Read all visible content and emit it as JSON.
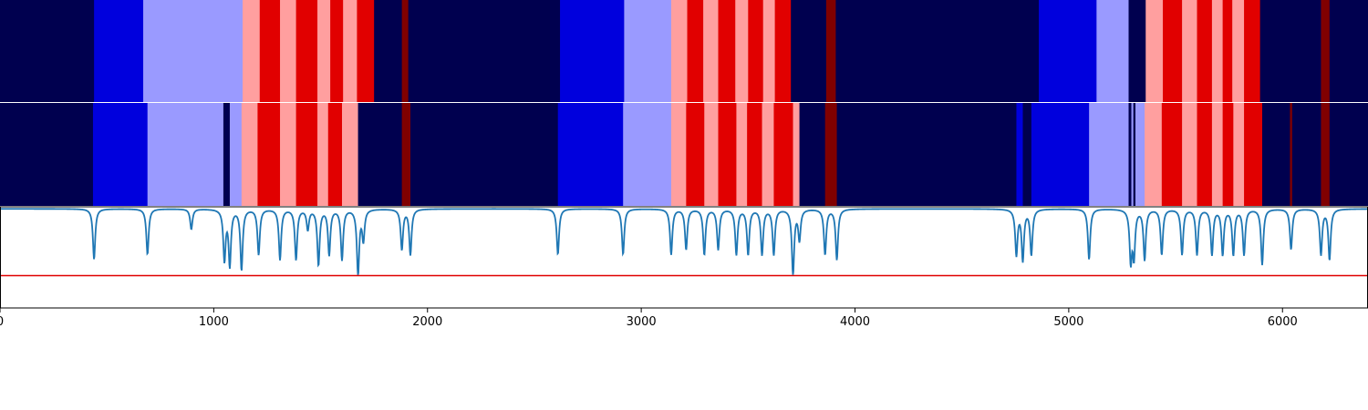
{
  "chart_data": [
    {
      "type": "heatmap",
      "name": "segmentation-track-1",
      "xlim": [
        0,
        6400
      ],
      "palette": {
        "navy": "#00004f",
        "blue": "#0000dd",
        "lavender": "#9a9aff",
        "pink": "#ff9f9f",
        "red": "#e10000",
        "maroon": "#800000"
      },
      "segments": [
        {
          "start": 0,
          "end": 440,
          "color": "navy"
        },
        {
          "start": 440,
          "end": 670,
          "color": "blue"
        },
        {
          "start": 670,
          "end": 1135,
          "color": "lavender"
        },
        {
          "start": 1135,
          "end": 1215,
          "color": "pink"
        },
        {
          "start": 1215,
          "end": 1310,
          "color": "red"
        },
        {
          "start": 1310,
          "end": 1385,
          "color": "pink"
        },
        {
          "start": 1385,
          "end": 1485,
          "color": "red"
        },
        {
          "start": 1485,
          "end": 1545,
          "color": "pink"
        },
        {
          "start": 1545,
          "end": 1605,
          "color": "red"
        },
        {
          "start": 1605,
          "end": 1670,
          "color": "pink"
        },
        {
          "start": 1670,
          "end": 1750,
          "color": "red"
        },
        {
          "start": 1750,
          "end": 1880,
          "color": "navy"
        },
        {
          "start": 1880,
          "end": 1910,
          "color": "maroon"
        },
        {
          "start": 1910,
          "end": 2620,
          "color": "navy"
        },
        {
          "start": 2620,
          "end": 2920,
          "color": "blue"
        },
        {
          "start": 2920,
          "end": 3140,
          "color": "lavender"
        },
        {
          "start": 3140,
          "end": 3215,
          "color": "pink"
        },
        {
          "start": 3215,
          "end": 3290,
          "color": "red"
        },
        {
          "start": 3290,
          "end": 3360,
          "color": "pink"
        },
        {
          "start": 3360,
          "end": 3440,
          "color": "red"
        },
        {
          "start": 3440,
          "end": 3500,
          "color": "pink"
        },
        {
          "start": 3500,
          "end": 3570,
          "color": "red"
        },
        {
          "start": 3570,
          "end": 3625,
          "color": "pink"
        },
        {
          "start": 3625,
          "end": 3700,
          "color": "red"
        },
        {
          "start": 3700,
          "end": 3865,
          "color": "navy"
        },
        {
          "start": 3865,
          "end": 3910,
          "color": "maroon"
        },
        {
          "start": 3910,
          "end": 4860,
          "color": "navy"
        },
        {
          "start": 4860,
          "end": 5130,
          "color": "blue"
        },
        {
          "start": 5130,
          "end": 5280,
          "color": "lavender"
        },
        {
          "start": 5280,
          "end": 5360,
          "color": "navy"
        },
        {
          "start": 5360,
          "end": 5440,
          "color": "pink"
        },
        {
          "start": 5440,
          "end": 5530,
          "color": "red"
        },
        {
          "start": 5530,
          "end": 5600,
          "color": "pink"
        },
        {
          "start": 5600,
          "end": 5670,
          "color": "red"
        },
        {
          "start": 5670,
          "end": 5720,
          "color": "pink"
        },
        {
          "start": 5720,
          "end": 5765,
          "color": "red"
        },
        {
          "start": 5765,
          "end": 5820,
          "color": "pink"
        },
        {
          "start": 5820,
          "end": 5895,
          "color": "red"
        },
        {
          "start": 5895,
          "end": 6180,
          "color": "navy"
        },
        {
          "start": 6180,
          "end": 6220,
          "color": "maroon"
        },
        {
          "start": 6220,
          "end": 6400,
          "color": "navy"
        }
      ]
    },
    {
      "type": "heatmap",
      "name": "segmentation-track-2",
      "xlim": [
        0,
        6400
      ],
      "segments": [
        {
          "start": 0,
          "end": 435,
          "color": "navy"
        },
        {
          "start": 435,
          "end": 690,
          "color": "blue"
        },
        {
          "start": 690,
          "end": 1045,
          "color": "lavender"
        },
        {
          "start": 1045,
          "end": 1075,
          "color": "navy"
        },
        {
          "start": 1075,
          "end": 1130,
          "color": "lavender"
        },
        {
          "start": 1130,
          "end": 1205,
          "color": "pink"
        },
        {
          "start": 1205,
          "end": 1310,
          "color": "red"
        },
        {
          "start": 1310,
          "end": 1385,
          "color": "pink"
        },
        {
          "start": 1385,
          "end": 1485,
          "color": "red"
        },
        {
          "start": 1485,
          "end": 1535,
          "color": "pink"
        },
        {
          "start": 1535,
          "end": 1600,
          "color": "red"
        },
        {
          "start": 1600,
          "end": 1675,
          "color": "pink"
        },
        {
          "start": 1675,
          "end": 1880,
          "color": "navy"
        },
        {
          "start": 1880,
          "end": 1920,
          "color": "maroon"
        },
        {
          "start": 1920,
          "end": 2610,
          "color": "navy"
        },
        {
          "start": 2610,
          "end": 2915,
          "color": "blue"
        },
        {
          "start": 2915,
          "end": 3140,
          "color": "lavender"
        },
        {
          "start": 3140,
          "end": 3210,
          "color": "pink"
        },
        {
          "start": 3210,
          "end": 3295,
          "color": "red"
        },
        {
          "start": 3295,
          "end": 3360,
          "color": "pink"
        },
        {
          "start": 3360,
          "end": 3445,
          "color": "red"
        },
        {
          "start": 3445,
          "end": 3495,
          "color": "pink"
        },
        {
          "start": 3495,
          "end": 3565,
          "color": "red"
        },
        {
          "start": 3565,
          "end": 3620,
          "color": "pink"
        },
        {
          "start": 3620,
          "end": 3710,
          "color": "red"
        },
        {
          "start": 3710,
          "end": 3740,
          "color": "pink"
        },
        {
          "start": 3740,
          "end": 3860,
          "color": "navy"
        },
        {
          "start": 3860,
          "end": 3915,
          "color": "maroon"
        },
        {
          "start": 3915,
          "end": 4755,
          "color": "navy"
        },
        {
          "start": 4755,
          "end": 4785,
          "color": "blue"
        },
        {
          "start": 4785,
          "end": 4825,
          "color": "navy"
        },
        {
          "start": 4825,
          "end": 5095,
          "color": "blue"
        },
        {
          "start": 5095,
          "end": 5280,
          "color": "lavender"
        },
        {
          "start": 5280,
          "end": 5293,
          "color": "navy"
        },
        {
          "start": 5293,
          "end": 5302,
          "color": "lavender"
        },
        {
          "start": 5302,
          "end": 5312,
          "color": "navy"
        },
        {
          "start": 5312,
          "end": 5355,
          "color": "lavender"
        },
        {
          "start": 5355,
          "end": 5435,
          "color": "pink"
        },
        {
          "start": 5435,
          "end": 5530,
          "color": "red"
        },
        {
          "start": 5530,
          "end": 5600,
          "color": "pink"
        },
        {
          "start": 5600,
          "end": 5670,
          "color": "red"
        },
        {
          "start": 5670,
          "end": 5720,
          "color": "pink"
        },
        {
          "start": 5720,
          "end": 5770,
          "color": "red"
        },
        {
          "start": 5770,
          "end": 5820,
          "color": "pink"
        },
        {
          "start": 5820,
          "end": 5905,
          "color": "red"
        },
        {
          "start": 5905,
          "end": 6035,
          "color": "navy"
        },
        {
          "start": 6035,
          "end": 6045,
          "color": "maroon"
        },
        {
          "start": 6045,
          "end": 6180,
          "color": "navy"
        },
        {
          "start": 6180,
          "end": 6220,
          "color": "maroon"
        },
        {
          "start": 6220,
          "end": 6400,
          "color": "navy"
        }
      ]
    },
    {
      "type": "line",
      "name": "signal-track",
      "xlim": [
        0,
        6400
      ],
      "ylim": [
        0,
        1
      ],
      "threshold": 0.32,
      "line_color": "#1f77b4",
      "threshold_color": "#e00000",
      "baseline": 0.98,
      "dips": [
        {
          "x": 440,
          "depth": 0.5
        },
        {
          "x": 690,
          "depth": 0.45
        },
        {
          "x": 895,
          "depth": 0.2
        },
        {
          "x": 1050,
          "depth": 0.5
        },
        {
          "x": 1075,
          "depth": 0.55
        },
        {
          "x": 1130,
          "depth": 0.6
        },
        {
          "x": 1210,
          "depth": 0.45
        },
        {
          "x": 1310,
          "depth": 0.5
        },
        {
          "x": 1385,
          "depth": 0.5
        },
        {
          "x": 1440,
          "depth": 0.2
        },
        {
          "x": 1490,
          "depth": 0.55
        },
        {
          "x": 1540,
          "depth": 0.45
        },
        {
          "x": 1600,
          "depth": 0.5
        },
        {
          "x": 1675,
          "depth": 0.65
        },
        {
          "x": 1700,
          "depth": 0.3
        },
        {
          "x": 1880,
          "depth": 0.4
        },
        {
          "x": 1920,
          "depth": 0.45
        },
        {
          "x": 2610,
          "depth": 0.45
        },
        {
          "x": 2915,
          "depth": 0.45
        },
        {
          "x": 3140,
          "depth": 0.45
        },
        {
          "x": 3210,
          "depth": 0.4
        },
        {
          "x": 3295,
          "depth": 0.45
        },
        {
          "x": 3360,
          "depth": 0.4
        },
        {
          "x": 3445,
          "depth": 0.45
        },
        {
          "x": 3500,
          "depth": 0.45
        },
        {
          "x": 3565,
          "depth": 0.45
        },
        {
          "x": 3620,
          "depth": 0.45
        },
        {
          "x": 3710,
          "depth": 0.65
        },
        {
          "x": 3740,
          "depth": 0.3
        },
        {
          "x": 3860,
          "depth": 0.45
        },
        {
          "x": 3915,
          "depth": 0.5
        },
        {
          "x": 4755,
          "depth": 0.45
        },
        {
          "x": 4785,
          "depth": 0.5
        },
        {
          "x": 4825,
          "depth": 0.45
        },
        {
          "x": 5095,
          "depth": 0.5
        },
        {
          "x": 5290,
          "depth": 0.5
        },
        {
          "x": 5305,
          "depth": 0.45
        },
        {
          "x": 5355,
          "depth": 0.5
        },
        {
          "x": 5435,
          "depth": 0.45
        },
        {
          "x": 5530,
          "depth": 0.45
        },
        {
          "x": 5600,
          "depth": 0.45
        },
        {
          "x": 5670,
          "depth": 0.45
        },
        {
          "x": 5720,
          "depth": 0.45
        },
        {
          "x": 5770,
          "depth": 0.45
        },
        {
          "x": 5820,
          "depth": 0.45
        },
        {
          "x": 5905,
          "depth": 0.55
        },
        {
          "x": 6040,
          "depth": 0.4
        },
        {
          "x": 6180,
          "depth": 0.45
        },
        {
          "x": 6220,
          "depth": 0.5
        }
      ]
    }
  ],
  "x_axis": {
    "ticks": [
      0,
      1000,
      2000,
      3000,
      4000,
      5000,
      6000
    ],
    "labels": [
      "0",
      "1000",
      "2000",
      "3000",
      "4000",
      "5000",
      "6000"
    ]
  }
}
